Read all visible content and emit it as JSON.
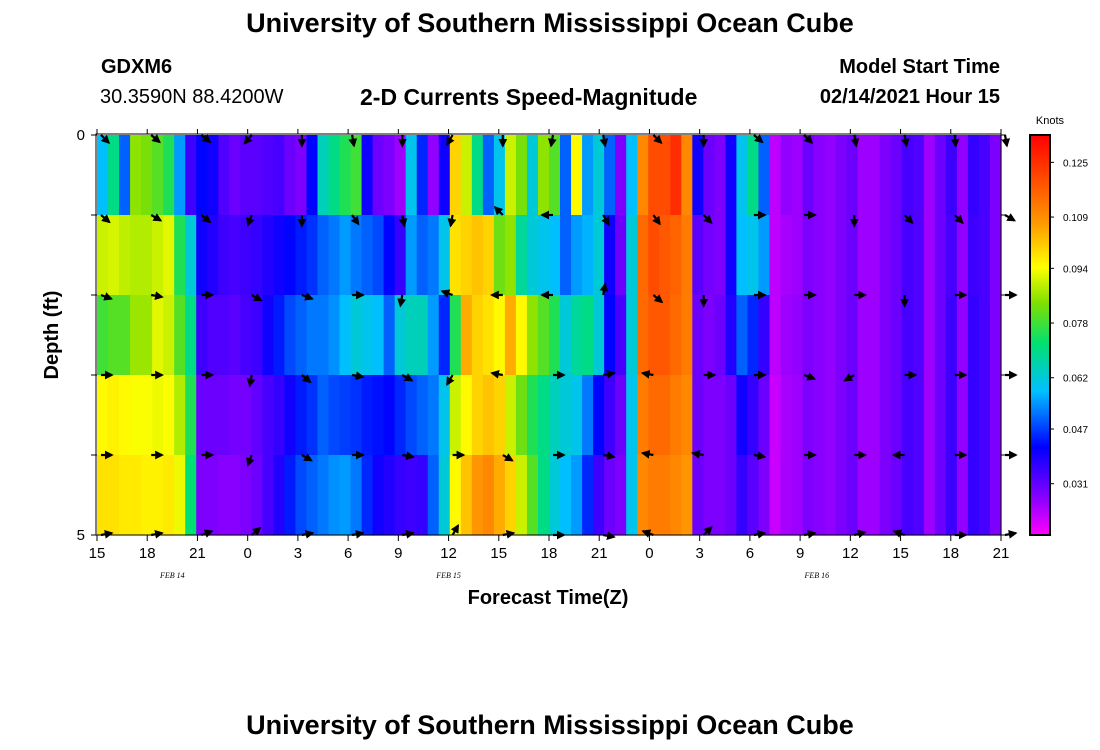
{
  "page": {
    "title_top": "University of Southern Mississippi Ocean Cube",
    "title_bottom": "University of Southern Mississippi Ocean Cube",
    "station_id": "GDXM6",
    "station_coords": "30.3590N 88.4200W",
    "model_start_label": "Model Start Time",
    "model_start_value": "02/14/2021 Hour 15"
  },
  "chart_data": {
    "type": "heatmap",
    "title": "2-D Currents Speed-Magnitude",
    "xlabel": "Forecast Time(Z)",
    "ylabel": "Depth (ft)",
    "colorbar_label": "Knots",
    "colorbar_ticks": [
      "0.125",
      "0.109",
      "0.094",
      "0.078",
      "0.062",
      "0.047",
      "0.031"
    ],
    "colorbar_range": [
      0.016,
      0.133
    ],
    "y_ticks": [
      "0",
      "5"
    ],
    "y_range": [
      0,
      5
    ],
    "x_tick_labels": [
      "15",
      "18",
      "21",
      "0",
      "3",
      "6",
      "9",
      "12",
      "15",
      "18",
      "21",
      "0",
      "3",
      "6",
      "9",
      "12",
      "15",
      "18",
      "21"
    ],
    "x_tick_hours": [
      0,
      3,
      6,
      9,
      12,
      15,
      18,
      21,
      24,
      27,
      30,
      33,
      36,
      39,
      42,
      45,
      48,
      51,
      54
    ],
    "date_labels": [
      {
        "text": "FEB 14",
        "hour": 4.5
      },
      {
        "text": "FEB 15",
        "hour": 21
      },
      {
        "text": "FEB 16",
        "hour": 43
      }
    ],
    "depth_bins_ft": [
      0,
      1,
      2,
      3,
      4,
      5
    ],
    "speed_knots": [
      [
        0.058,
        0.07,
        0.05,
        0.085,
        0.083,
        0.08,
        0.075,
        0.055,
        0.035,
        0.042,
        0.04,
        0.033,
        0.03,
        0.032,
        0.032,
        0.033,
        0.034,
        0.03,
        0.028,
        0.042,
        0.065,
        0.07,
        0.075,
        0.078,
        0.04,
        0.03,
        0.028,
        0.025,
        0.06,
        0.045,
        0.026,
        0.04,
        0.1,
        0.09,
        0.07,
        0.05,
        0.06,
        0.09,
        0.083,
        0.062,
        0.085,
        0.08,
        0.05,
        0.095,
        0.055,
        0.062,
        0.05,
        0.028,
        0.058,
        0.11,
        0.12,
        0.12,
        0.125,
        0.11,
        0.04,
        0.03,
        0.028,
        0.04,
        0.06,
        0.07,
        0.05,
        0.022,
        0.026,
        0.025,
        0.03,
        0.027,
        0.026,
        0.028,
        0.03,
        0.025,
        0.025,
        0.028,
        0.03,
        0.034,
        0.033,
        0.025,
        0.03,
        0.035,
        0.026,
        0.036,
        0.034,
        0.028
      ],
      [
        0.09,
        0.091,
        0.089,
        0.088,
        0.088,
        0.09,
        0.092,
        0.075,
        0.062,
        0.04,
        0.038,
        0.035,
        0.034,
        0.035,
        0.036,
        0.038,
        0.04,
        0.042,
        0.044,
        0.046,
        0.05,
        0.052,
        0.055,
        0.052,
        0.05,
        0.048,
        0.042,
        0.036,
        0.055,
        0.05,
        0.052,
        0.06,
        0.098,
        0.1,
        0.102,
        0.1,
        0.082,
        0.085,
        0.068,
        0.062,
        0.06,
        0.058,
        0.05,
        0.055,
        0.057,
        0.062,
        0.04,
        0.03,
        0.062,
        0.115,
        0.12,
        0.118,
        0.116,
        0.112,
        0.032,
        0.029,
        0.028,
        0.04,
        0.058,
        0.06,
        0.055,
        0.022,
        0.024,
        0.025,
        0.028,
        0.027,
        0.026,
        0.028,
        0.03,
        0.025,
        0.025,
        0.028,
        0.03,
        0.034,
        0.033,
        0.025,
        0.03,
        0.034,
        0.026,
        0.035,
        0.034,
        0.028
      ],
      [
        0.078,
        0.08,
        0.08,
        0.086,
        0.086,
        0.092,
        0.09,
        0.08,
        0.07,
        0.035,
        0.033,
        0.033,
        0.032,
        0.034,
        0.035,
        0.04,
        0.044,
        0.048,
        0.05,
        0.052,
        0.052,
        0.054,
        0.058,
        0.062,
        0.06,
        0.058,
        0.05,
        0.062,
        0.065,
        0.065,
        0.055,
        0.045,
        0.075,
        0.105,
        0.1,
        0.098,
        0.095,
        0.105,
        0.095,
        0.085,
        0.08,
        0.075,
        0.062,
        0.068,
        0.07,
        0.062,
        0.042,
        0.034,
        0.062,
        0.115,
        0.118,
        0.118,
        0.115,
        0.112,
        0.03,
        0.028,
        0.03,
        0.038,
        0.05,
        0.045,
        0.036,
        0.022,
        0.025,
        0.026,
        0.028,
        0.027,
        0.026,
        0.028,
        0.03,
        0.025,
        0.025,
        0.028,
        0.03,
        0.034,
        0.033,
        0.025,
        0.03,
        0.035,
        0.026,
        0.036,
        0.034,
        0.028
      ],
      [
        0.095,
        0.096,
        0.095,
        0.094,
        0.094,
        0.093,
        0.094,
        0.088,
        0.075,
        0.03,
        0.03,
        0.03,
        0.029,
        0.029,
        0.031,
        0.034,
        0.036,
        0.04,
        0.044,
        0.046,
        0.05,
        0.048,
        0.047,
        0.046,
        0.044,
        0.043,
        0.042,
        0.045,
        0.048,
        0.05,
        0.052,
        0.06,
        0.09,
        0.095,
        0.1,
        0.102,
        0.1,
        0.09,
        0.082,
        0.075,
        0.07,
        0.065,
        0.062,
        0.06,
        0.052,
        0.042,
        0.035,
        0.03,
        0.06,
        0.112,
        0.115,
        0.115,
        0.112,
        0.11,
        0.03,
        0.028,
        0.028,
        0.03,
        0.04,
        0.036,
        0.03,
        0.021,
        0.024,
        0.025,
        0.028,
        0.027,
        0.026,
        0.028,
        0.03,
        0.025,
        0.025,
        0.028,
        0.03,
        0.034,
        0.033,
        0.025,
        0.03,
        0.035,
        0.026,
        0.036,
        0.034,
        0.028
      ],
      [
        0.098,
        0.098,
        0.097,
        0.097,
        0.096,
        0.096,
        0.097,
        0.093,
        0.072,
        0.028,
        0.028,
        0.027,
        0.027,
        0.028,
        0.03,
        0.034,
        0.038,
        0.044,
        0.048,
        0.05,
        0.052,
        0.054,
        0.055,
        0.052,
        0.045,
        0.04,
        0.038,
        0.036,
        0.035,
        0.036,
        0.05,
        0.062,
        0.095,
        0.102,
        0.108,
        0.11,
        0.105,
        0.1,
        0.09,
        0.08,
        0.07,
        0.062,
        0.058,
        0.055,
        0.045,
        0.035,
        0.03,
        0.028,
        0.06,
        0.11,
        0.112,
        0.112,
        0.11,
        0.108,
        0.03,
        0.028,
        0.028,
        0.03,
        0.036,
        0.032,
        0.028,
        0.021,
        0.024,
        0.025,
        0.028,
        0.027,
        0.026,
        0.028,
        0.03,
        0.025,
        0.025,
        0.028,
        0.03,
        0.034,
        0.033,
        0.025,
        0.03,
        0.035,
        0.026,
        0.036,
        0.034,
        0.028
      ]
    ],
    "vectors": {
      "hours": [
        0,
        3,
        6,
        9,
        12,
        15,
        18,
        21,
        24,
        27,
        30,
        33,
        36,
        39,
        42,
        45,
        48,
        51,
        54
      ],
      "depths_ft": [
        0,
        1,
        2,
        3,
        4,
        5
      ],
      "angles_deg": [
        [
          -45,
          -40,
          -40,
          -130,
          -90,
          -80,
          -90,
          -120,
          -90,
          -100,
          -80,
          -45,
          -90,
          -40,
          -45,
          -80,
          -80,
          -85,
          -80
        ],
        [
          -40,
          -30,
          -40,
          -110,
          -90,
          -55,
          -80,
          -100,
          135,
          180,
          -60,
          -55,
          -45,
          0,
          0,
          -90,
          -45,
          -45,
          -30
        ],
        [
          -20,
          -10,
          0,
          -30,
          -20,
          0,
          -100,
          160,
          180,
          180,
          80,
          -40,
          -90,
          0,
          0,
          0,
          -90,
          0,
          0
        ],
        [
          0,
          0,
          0,
          -100,
          -40,
          -10,
          -30,
          -120,
          170,
          0,
          10,
          170,
          0,
          0,
          -20,
          -150,
          0,
          0,
          0
        ],
        [
          0,
          0,
          0,
          -110,
          -30,
          0,
          -10,
          0,
          -30,
          0,
          -10,
          170,
          170,
          -10,
          0,
          0,
          180,
          0,
          0
        ],
        [
          10,
          10,
          20,
          40,
          10,
          10,
          10,
          60,
          10,
          0,
          -10,
          160,
          45,
          10,
          10,
          15,
          160,
          0,
          10
        ]
      ]
    }
  }
}
